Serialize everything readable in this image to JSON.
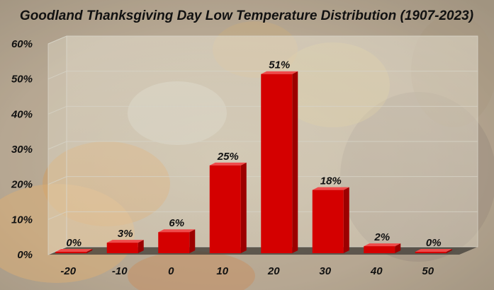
{
  "chart_data": {
    "type": "bar",
    "title": "Goodland Thanksgiving Day Low Temperature Distribution (1907-2023)",
    "xlabel": "",
    "ylabel": "",
    "categories": [
      "-20",
      "-10",
      "0",
      "10",
      "20",
      "30",
      "40",
      "50"
    ],
    "values": [
      0,
      3,
      6,
      25,
      51,
      18,
      2,
      0
    ],
    "data_labels": [
      "0%",
      "3%",
      "6%",
      "25%",
      "51%",
      "18%",
      "2%",
      "0%"
    ],
    "y_ticks": [
      "0%",
      "10%",
      "20%",
      "30%",
      "40%",
      "50%",
      "60%"
    ],
    "ylim": [
      0,
      60
    ],
    "grid": true,
    "legend": "none",
    "style": "3d-bar",
    "bar_color": "#d40000",
    "bar_side_color": "#9c0000",
    "bar_top_color": "#ef4a4a",
    "background": "photo of autumn pumpkins and gourds (harvest theme)"
  }
}
